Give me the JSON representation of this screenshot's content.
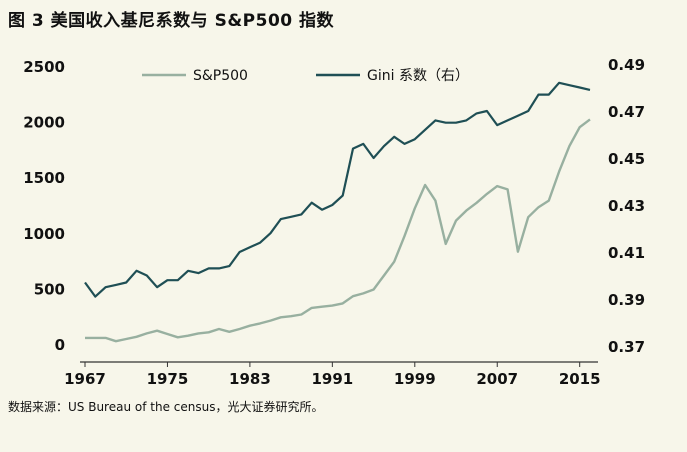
{
  "title": "图 3  美国收入基尼系数与 S&P500 指数",
  "source": "数据来源：US Bureau of the census，光大证券研究所。",
  "chart_data": {
    "type": "line",
    "x_ticks": [
      "1967",
      "1975",
      "1983",
      "1991",
      "1999",
      "2007",
      "2015"
    ],
    "xlim": [
      1967,
      2016
    ],
    "left_axis": {
      "ticks": [
        "2500",
        "2000",
        "1500",
        "1000",
        "500",
        "0"
      ],
      "ylim": [
        0,
        2500
      ]
    },
    "right_axis": {
      "ticks": [
        "0.49",
        "0.47",
        "0.45",
        "0.43",
        "0.41",
        "0.39",
        "0.37"
      ],
      "ylim": [
        0.37,
        0.49
      ]
    },
    "colors": {
      "sp500": "#98b0a0",
      "gini": "#1f4f55",
      "axis": "#333333"
    },
    "series": [
      {
        "name": "S&P500",
        "axis": "left",
        "x": [
          1967,
          1968,
          1969,
          1970,
          1971,
          1972,
          1973,
          1974,
          1975,
          1976,
          1977,
          1978,
          1979,
          1980,
          1981,
          1982,
          1983,
          1984,
          1985,
          1986,
          1987,
          1988,
          1989,
          1990,
          1991,
          1992,
          1993,
          1994,
          1995,
          1996,
          1997,
          1998,
          1999,
          2000,
          2001,
          2002,
          2003,
          2004,
          2005,
          2006,
          2007,
          2008,
          2009,
          2010,
          2011,
          2012,
          2013,
          2014,
          2015,
          2016
        ],
        "values": [
          55,
          55,
          55,
          25,
          45,
          65,
          95,
          120,
          90,
          60,
          75,
          95,
          105,
          135,
          110,
          135,
          165,
          185,
          210,
          240,
          250,
          265,
          325,
          335,
          345,
          365,
          430,
          455,
          490,
          615,
          740,
          970,
          1220,
          1430,
          1290,
          900,
          1110,
          1200,
          1270,
          1350,
          1420,
          1390,
          830,
          1140,
          1230,
          1290,
          1550,
          1780,
          1950,
          2020
        ],
        "label": "S&P500"
      },
      {
        "name": "Gini 系数（右）",
        "axis": "right",
        "x": [
          1967,
          1968,
          1969,
          1970,
          1971,
          1972,
          1973,
          1974,
          1975,
          1976,
          1977,
          1978,
          1979,
          1980,
          1981,
          1982,
          1983,
          1984,
          1985,
          1986,
          1987,
          1988,
          1989,
          1990,
          1991,
          1992,
          1993,
          1994,
          1995,
          1996,
          1997,
          1998,
          1999,
          2000,
          2001,
          2002,
          2003,
          2004,
          2005,
          2006,
          2007,
          2008,
          2009,
          2010,
          2011,
          2012,
          2013,
          2014,
          2015,
          2016
        ],
        "values": [
          0.397,
          0.391,
          0.395,
          0.396,
          0.397,
          0.402,
          0.4,
          0.395,
          0.398,
          0.398,
          0.402,
          0.401,
          0.403,
          0.403,
          0.404,
          0.41,
          0.412,
          0.414,
          0.418,
          0.424,
          0.425,
          0.426,
          0.431,
          0.428,
          0.43,
          0.434,
          0.454,
          0.456,
          0.45,
          0.455,
          0.459,
          0.456,
          0.458,
          0.462,
          0.466,
          0.465,
          0.465,
          0.466,
          0.469,
          0.47,
          0.464,
          0.466,
          0.468,
          0.47,
          0.477,
          0.477,
          0.482,
          0.481,
          0.48,
          0.479
        ],
        "label": "Gini 系数（右）"
      }
    ],
    "legend": [
      {
        "label": "S&P500",
        "series": 0
      },
      {
        "label": "Gini 系数（右）",
        "series": 1
      }
    ],
    "legend_position": "top-center",
    "grid": false
  }
}
